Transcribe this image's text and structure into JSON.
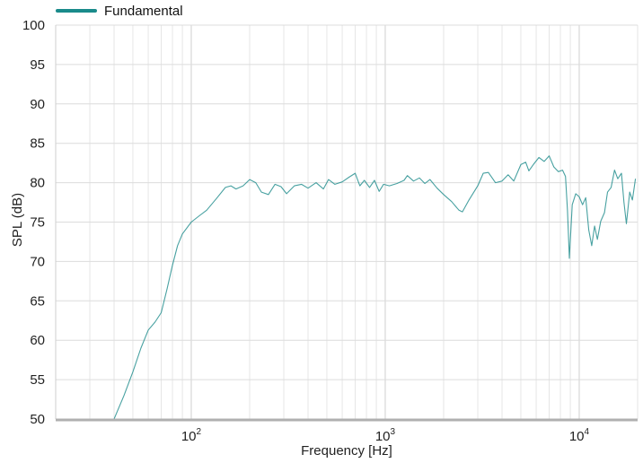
{
  "chart_data": {
    "type": "line",
    "title": "",
    "xlabel": "Frequency [Hz]",
    "ylabel": "SPL (dB)",
    "x_scale": "log",
    "xlim": [
      20,
      20000
    ],
    "ylim": [
      50,
      100
    ],
    "grid": true,
    "legend_position": "top-left",
    "y_ticks": [
      "50",
      "55",
      "60",
      "65",
      "70",
      "75",
      "80",
      "85",
      "90",
      "95",
      "100"
    ],
    "x_ticks": [
      {
        "value": 100,
        "base": "10",
        "exp": "2"
      },
      {
        "value": 1000,
        "base": "10",
        "exp": "3"
      },
      {
        "value": 10000,
        "base": "10",
        "exp": "4"
      }
    ],
    "series": [
      {
        "name": "Fundamental",
        "color": "#1a8a8a",
        "points": [
          [
            40,
            50
          ],
          [
            45,
            53
          ],
          [
            50,
            56
          ],
          [
            55,
            59
          ],
          [
            60,
            61.3
          ],
          [
            65,
            62.3
          ],
          [
            70,
            63.5
          ],
          [
            75,
            66.5
          ],
          [
            80,
            69.5
          ],
          [
            85,
            72
          ],
          [
            90,
            73.5
          ],
          [
            100,
            75
          ],
          [
            110,
            75.8
          ],
          [
            120,
            76.5
          ],
          [
            135,
            78
          ],
          [
            150,
            79.4
          ],
          [
            160,
            79.6
          ],
          [
            170,
            79.2
          ],
          [
            185,
            79.6
          ],
          [
            200,
            80.4
          ],
          [
            215,
            80
          ],
          [
            230,
            78.8
          ],
          [
            250,
            78.5
          ],
          [
            270,
            79.8
          ],
          [
            290,
            79.5
          ],
          [
            310,
            78.6
          ],
          [
            340,
            79.6
          ],
          [
            370,
            79.8
          ],
          [
            400,
            79.3
          ],
          [
            440,
            80
          ],
          [
            480,
            79.2
          ],
          [
            510,
            80.4
          ],
          [
            550,
            79.8
          ],
          [
            600,
            80.1
          ],
          [
            650,
            80.7
          ],
          [
            700,
            81.2
          ],
          [
            740,
            79.6
          ],
          [
            780,
            80.3
          ],
          [
            830,
            79.4
          ],
          [
            880,
            80.3
          ],
          [
            930,
            78.9
          ],
          [
            980,
            79.8
          ],
          [
            1050,
            79.6
          ],
          [
            1150,
            79.9
          ],
          [
            1250,
            80.3
          ],
          [
            1300,
            80.9
          ],
          [
            1400,
            80.2
          ],
          [
            1500,
            80.6
          ],
          [
            1600,
            79.9
          ],
          [
            1700,
            80.4
          ],
          [
            1850,
            79.3
          ],
          [
            2000,
            78.5
          ],
          [
            2200,
            77.6
          ],
          [
            2400,
            76.5
          ],
          [
            2500,
            76.3
          ],
          [
            2700,
            77.8
          ],
          [
            3000,
            79.6
          ],
          [
            3200,
            81.2
          ],
          [
            3400,
            81.3
          ],
          [
            3700,
            80
          ],
          [
            4000,
            80.2
          ],
          [
            4300,
            81
          ],
          [
            4600,
            80.2
          ],
          [
            5000,
            82.3
          ],
          [
            5300,
            82.6
          ],
          [
            5500,
            81.5
          ],
          [
            5800,
            82.3
          ],
          [
            6200,
            83.2
          ],
          [
            6600,
            82.7
          ],
          [
            7000,
            83.4
          ],
          [
            7400,
            82
          ],
          [
            7800,
            81.4
          ],
          [
            8200,
            81.6
          ],
          [
            8500,
            80.8
          ],
          [
            8700,
            76.5
          ],
          [
            8900,
            70.4
          ],
          [
            9200,
            77.2
          ],
          [
            9600,
            78.6
          ],
          [
            10000,
            78.2
          ],
          [
            10400,
            77.2
          ],
          [
            10800,
            78.1
          ],
          [
            11200,
            74
          ],
          [
            11600,
            72
          ],
          [
            12000,
            74.5
          ],
          [
            12400,
            72.8
          ],
          [
            12900,
            75.1
          ],
          [
            13500,
            76.2
          ],
          [
            14000,
            78.8
          ],
          [
            14600,
            79.4
          ],
          [
            15200,
            81.6
          ],
          [
            15800,
            80.5
          ],
          [
            16500,
            81.2
          ],
          [
            17000,
            77.5
          ],
          [
            17500,
            74.8
          ],
          [
            18200,
            78.8
          ],
          [
            18800,
            77.8
          ],
          [
            19500,
            80.5
          ]
        ]
      }
    ]
  }
}
